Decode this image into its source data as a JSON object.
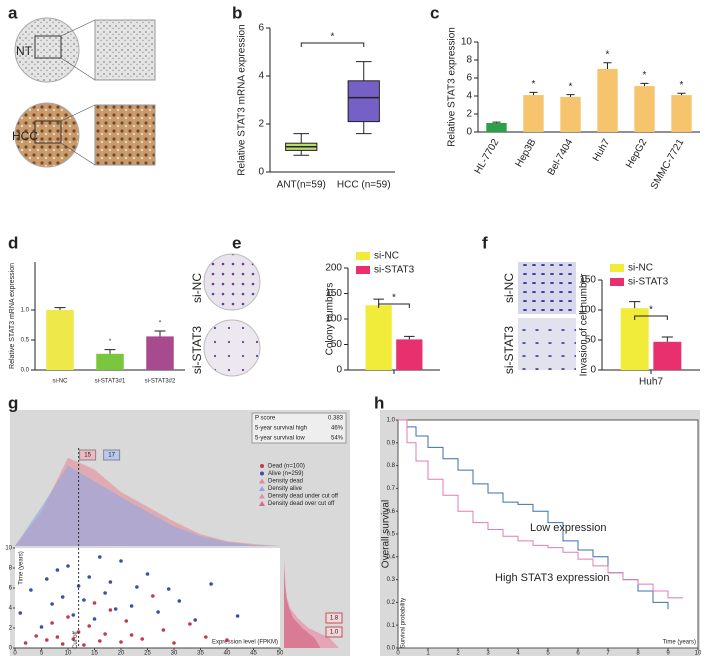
{
  "figure_a": {
    "panel": "a",
    "rows": [
      "NT",
      "HCC"
    ]
  },
  "chart_data": [
    {
      "type": "box",
      "panel": "b",
      "ylabel": "Relative STAT3 mRNA expression",
      "categories": [
        "ANT(n=59)",
        "HCC (n=59)"
      ],
      "colors": [
        "#b9dc6c",
        "#7560c6"
      ],
      "boxes": [
        {
          "min": 0.7,
          "q1": 0.9,
          "median": 1.05,
          "q3": 1.2,
          "max": 1.6
        },
        {
          "min": 1.6,
          "q1": 2.1,
          "median": 3.1,
          "q3": 3.8,
          "max": 4.6
        }
      ],
      "ylim": [
        0,
        6
      ],
      "yticks": [
        0,
        2,
        4,
        6
      ],
      "annotation": "*"
    },
    {
      "type": "bar",
      "panel": "c",
      "ylabel": "Relative STAT3 expression",
      "categories": [
        "HL-7702",
        "Hep3B",
        "Bel-7404",
        "Huh7",
        "HepG2",
        "SMMC-7721"
      ],
      "values": [
        1,
        4.1,
        3.9,
        7,
        5.1,
        4.1
      ],
      "errors": [
        0.1,
        0.3,
        0.25,
        0.7,
        0.3,
        0.2
      ],
      "colors": [
        "#2e9e48",
        "#f6c46c",
        "#f6c46c",
        "#f6c46c",
        "#f6c46c",
        "#f6c46c"
      ],
      "significance": [
        null,
        "*",
        "*",
        "*",
        "*",
        "*"
      ],
      "ylim": [
        0,
        10
      ],
      "yticks": [
        0,
        2,
        4,
        6,
        8,
        10
      ]
    },
    {
      "type": "bar",
      "panel": "d",
      "ylabel": "Relative STAT3 mRNA expression",
      "categories": [
        "si-NC",
        "si-STAT3#1",
        "si-STAT3#2"
      ],
      "values": [
        1.0,
        0.27,
        0.56
      ],
      "errors": [
        0.04,
        0.07,
        0.09
      ],
      "colors": [
        "#efe84a",
        "#7ac63e",
        "#a84b8e"
      ],
      "significance": [
        null,
        "*",
        "*"
      ],
      "ylim": [
        0,
        1.8
      ],
      "yticks": [
        {
          "value": 0,
          "label": "0.0"
        },
        {
          "value": 0.5,
          "label": "0.5"
        },
        {
          "value": 1,
          "label": "1.0"
        }
      ]
    },
    {
      "type": "bar",
      "panel": "e",
      "ylabel": "Colony numbers",
      "image_labels": [
        "si-NC",
        "si-STAT3"
      ],
      "categories": [
        null
      ],
      "series": [
        {
          "name": "si-NC",
          "color": "#f1ec3a",
          "values": [
            127
          ],
          "errors": [
            12
          ]
        },
        {
          "name": "si-STAT3",
          "color": "#e8306f",
          "values": [
            60
          ],
          "errors": [
            6
          ]
        }
      ],
      "ylim": [
        0,
        200
      ],
      "yticks": [
        0,
        50,
        100,
        150,
        200
      ],
      "annotation": "*"
    },
    {
      "type": "bar",
      "panel": "f",
      "ylabel": "Invasion of cell number",
      "image_labels": [
        "si-NC",
        "si-STAT3"
      ],
      "categories": [
        "Huh7"
      ],
      "series": [
        {
          "name": "si-NC",
          "color": "#f1ec3a",
          "values": [
            103
          ],
          "errors": [
            11
          ]
        },
        {
          "name": "si-STAT3",
          "color": "#e8306f",
          "values": [
            47
          ],
          "errors": [
            8
          ]
        }
      ],
      "ylim": [
        0,
        150
      ],
      "yticks": [
        0,
        50,
        100,
        150
      ],
      "annotation": "*"
    },
    {
      "type": "scatter",
      "panel": "g",
      "xlabel": "Expression level (FPKM)",
      "ylabel": "Time (years)",
      "series": [
        {
          "name": "Dead (n=100)",
          "color": "#c23a50",
          "x": [
            2,
            4,
            6,
            7,
            8,
            9,
            10,
            11,
            12,
            13,
            14,
            15,
            16,
            17,
            18,
            20,
            21,
            22,
            24,
            26,
            28,
            30,
            33,
            36,
            40
          ],
          "values": [
            0.5,
            1.2,
            0.8,
            2.5,
            1.1,
            0.4,
            3.1,
            0.9,
            1.6,
            0.3,
            2.2,
            4.5,
            0.7,
            1.4,
            3.8,
            0.6,
            2.7,
            1.3,
            0.9,
            5.2,
            1.8,
            0.5,
            2.4,
            1.1,
            0.8
          ]
        },
        {
          "name": "Alive (n=259)",
          "color": "#3a4fa8",
          "x": [
            1,
            3,
            5,
            6,
            7,
            8,
            9,
            10,
            11,
            12,
            13,
            14,
            15,
            16,
            17,
            18,
            19,
            20,
            22,
            23,
            25,
            27,
            29,
            31,
            34,
            37,
            42
          ],
          "values": [
            3.5,
            5.8,
            2.1,
            6.9,
            4.4,
            7.8,
            5.1,
            8.2,
            3.3,
            6.2,
            4.8,
            7.1,
            2.9,
            9.1,
            5.5,
            6.6,
            3.9,
            8.7,
            4.2,
            6.1,
            7.4,
            3.6,
            5.9,
            4.7,
            2.8,
            6.4,
            3.2
          ]
        }
      ],
      "density_x": [
        0,
        5,
        10,
        15,
        20,
        25,
        30,
        35,
        40,
        45,
        50
      ],
      "density_ylim": [
        0,
        1
      ],
      "density": [
        {
          "name": "Density dead",
          "color": "#e48a99",
          "values": [
            0,
            0.35,
            0.9,
            0.78,
            0.55,
            0.4,
            0.25,
            0.12,
            0.05,
            0.02,
            0
          ]
        },
        {
          "name": "Density alive",
          "color": "#8fa6e0",
          "values": [
            0,
            0.4,
            0.82,
            0.66,
            0.5,
            0.35,
            0.2,
            0.1,
            0.04,
            0.01,
            0
          ]
        }
      ],
      "side_y": [
        0,
        1,
        2,
        3,
        4,
        5,
        6,
        7,
        8,
        9,
        10
      ],
      "side_density": [
        {
          "name": "Density dead under cut off",
          "color": "#e88ea6",
          "values": [
            0.9,
            0.75,
            0.4,
            0.22,
            0.1,
            0.05,
            0.03,
            0.02,
            0.01,
            0,
            0
          ]
        },
        {
          "name": "Density dead over cut off",
          "color": "#d46a88",
          "values": [
            0.6,
            0.5,
            0.3,
            0.15,
            0.08,
            0.04,
            0.02,
            0.01,
            0,
            0,
            0
          ]
        }
      ],
      "cutoff": 12,
      "cutoff_label": "Cut off",
      "cutoff_tags": [
        "15",
        "17"
      ],
      "side_tags": [
        "1.8",
        "1.0"
      ],
      "stats": [
        [
          "P score",
          "0.383"
        ],
        [
          "5-year survival high",
          "46%"
        ],
        [
          "5-year survival low",
          "54%"
        ]
      ],
      "xlim": [
        0,
        50
      ],
      "xticks": [
        0,
        5,
        10,
        15,
        20,
        25,
        30,
        35,
        40,
        45,
        50
      ],
      "ylim": [
        0,
        10
      ],
      "yticks": [
        0,
        2,
        4,
        6,
        8,
        10
      ]
    },
    {
      "type": "survival",
      "panel": "h",
      "ylabel": "Overall survival",
      "inner_ylabel": "Survival probability",
      "xlabel": "Time (years)",
      "series": [
        {
          "name": "Low expression",
          "color": "#3a6fb0",
          "x": [
            0,
            0.3,
            0.6,
            1,
            1.5,
            2,
            2.5,
            3,
            3.5,
            4,
            4.5,
            5,
            5.5,
            6,
            6.5,
            7,
            7.5,
            8,
            8.5,
            9
          ],
          "values": [
            1,
            0.97,
            0.93,
            0.88,
            0.83,
            0.78,
            0.72,
            0.68,
            0.64,
            0.63,
            0.6,
            0.55,
            0.47,
            0.43,
            0.4,
            0.33,
            0.3,
            0.25,
            0.2,
            0.17
          ]
        },
        {
          "name": "High STAT3 expression",
          "color": "#e07bb4",
          "x": [
            0,
            0.3,
            0.6,
            1,
            1.5,
            2,
            2.5,
            3,
            3.5,
            4,
            4.5,
            5,
            5.5,
            6,
            6.5,
            7,
            7.5,
            8,
            8.5,
            9,
            9.5
          ],
          "values": [
            1,
            0.9,
            0.82,
            0.74,
            0.67,
            0.6,
            0.55,
            0.52,
            0.49,
            0.47,
            0.45,
            0.44,
            0.42,
            0.39,
            0.36,
            0.33,
            0.3,
            0.28,
            0.25,
            0.22,
            0.22
          ]
        }
      ],
      "xlim": [
        0,
        10
      ],
      "xticks": [
        0,
        1,
        2,
        3,
        4,
        5,
        6,
        7,
        8,
        9,
        10
      ],
      "ylim": [
        0,
        1
      ],
      "yticks": [
        {
          "value": 0,
          "label": "0.0"
        },
        {
          "value": 0.1,
          "label": "0.1"
        },
        {
          "value": 0.2,
          "label": "0.2"
        },
        {
          "value": 0.3,
          "label": "0.3"
        },
        {
          "value": 0.4,
          "label": "0.4"
        },
        {
          "value": 0.5,
          "label": "0.5"
        },
        {
          "value": 0.6,
          "label": "0.6"
        },
        {
          "value": 0.7,
          "label": "0.7"
        },
        {
          "value": 0.8,
          "label": "0.8"
        },
        {
          "value": 0.9,
          "label": "0.9"
        },
        {
          "value": 1,
          "label": "1.0"
        }
      ]
    }
  ]
}
